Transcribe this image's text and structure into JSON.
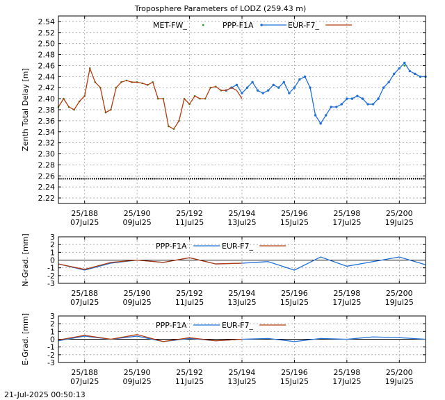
{
  "footer_timestamp": "21-Jul-2025 00:50:13",
  "colors": {
    "met": "#1a9a1a",
    "ppp": "#1f6fd6",
    "eur": "#b33a0d",
    "grid": "#a0a0a0",
    "hline": "#000000"
  },
  "chart_data": [
    {
      "type": "scatter",
      "title": "Troposphere Parameters of LODZ (259.43 m)",
      "ylabel": "Zenth Total Delay [m]",
      "xlim": [
        0,
        7.0
      ],
      "ylim": [
        2.21,
        2.55
      ],
      "yticks": [
        "2.22",
        "2.24",
        "2.26",
        "2.28",
        "2.30",
        "2.32",
        "2.34",
        "2.36",
        "2.38",
        "2.40",
        "2.42",
        "2.44",
        "2.46",
        "2.48",
        "2.50",
        "2.52",
        "2.54"
      ],
      "xticks": [
        {
          "pos": 0.5,
          "doy": "25/188",
          "date": "07Jul25"
        },
        {
          "pos": 1.5,
          "doy": "25/190",
          "date": "09Jul25"
        },
        {
          "pos": 2.5,
          "doy": "25/192",
          "date": "11Jul25"
        },
        {
          "pos": 3.5,
          "doy": "25/194",
          "date": "13Jul25"
        },
        {
          "pos": 4.5,
          "doy": "25/196",
          "date": "15Jul25"
        },
        {
          "pos": 5.5,
          "doy": "25/198",
          "date": "17Jul25"
        },
        {
          "pos": 6.5,
          "doy": "25/200",
          "date": "19Jul25"
        }
      ],
      "hline": 2.255,
      "grid": true,
      "legend_position": "top-center",
      "series": [
        {
          "name": "MET-FW_",
          "style": "dots",
          "color_key": "met",
          "x": [
            0.0,
            0.1,
            0.2,
            0.3,
            0.4,
            0.5,
            0.6,
            0.7,
            0.8,
            0.9,
            1.0,
            1.1,
            1.2,
            1.3,
            1.4,
            1.5,
            1.6,
            1.7,
            1.8,
            1.9,
            2.0,
            2.1,
            2.2,
            2.3,
            2.4,
            2.5,
            2.6,
            2.7,
            2.8,
            2.9,
            3.0,
            3.1,
            3.2,
            3.3,
            3.4,
            3.5,
            3.6,
            3.7,
            3.8,
            3.9,
            4.0,
            4.1,
            4.2,
            4.3,
            4.4,
            4.5,
            4.6,
            4.7,
            4.8,
            4.9,
            5.0,
            5.1,
            5.2,
            5.3,
            5.4,
            5.5,
            5.6,
            5.7,
            5.8,
            5.9,
            6.0,
            6.1,
            6.2,
            6.3,
            6.4,
            6.5,
            6.6,
            6.7,
            6.8,
            6.9,
            7.0
          ],
          "y": [
            2.385,
            2.4,
            2.385,
            2.38,
            2.395,
            2.405,
            2.455,
            2.43,
            2.42,
            2.375,
            2.38,
            2.42,
            2.43,
            2.433,
            2.43,
            2.43,
            2.428,
            2.425,
            2.43,
            2.4,
            2.4,
            2.35,
            2.345,
            2.36,
            2.4,
            2.39,
            2.405,
            2.4,
            2.4,
            2.42,
            2.422,
            2.415,
            2.415,
            2.42,
            2.425,
            2.41,
            2.42,
            2.43,
            2.415,
            2.41,
            2.415,
            2.425,
            2.42,
            2.43,
            2.41,
            2.42,
            2.435,
            2.44,
            2.42,
            2.37,
            2.355,
            2.37,
            2.385,
            2.385,
            2.39,
            2.4,
            2.4,
            2.405,
            2.4,
            2.39,
            2.39,
            2.4,
            2.42,
            2.43,
            2.445,
            2.455,
            2.46,
            2.45,
            2.445,
            2.44,
            2.44
          ]
        },
        {
          "name": "PPP-F1A",
          "style": "points-line",
          "color_key": "ppp",
          "x": [
            3.2,
            3.3,
            3.4,
            3.5,
            3.6,
            3.7,
            3.8,
            3.9,
            4.0,
            4.1,
            4.2,
            4.3,
            4.4,
            4.5,
            4.6,
            4.7,
            4.8,
            4.9,
            5.0,
            5.1,
            5.2,
            5.3,
            5.4,
            5.5,
            5.6,
            5.7,
            5.8,
            5.9,
            6.0,
            6.1,
            6.2,
            6.3,
            6.4,
            6.5,
            6.6,
            6.7,
            6.8,
            6.9,
            7.0
          ],
          "y": [
            2.415,
            2.42,
            2.425,
            2.41,
            2.42,
            2.43,
            2.415,
            2.41,
            2.415,
            2.425,
            2.42,
            2.43,
            2.41,
            2.42,
            2.435,
            2.44,
            2.42,
            2.37,
            2.355,
            2.37,
            2.385,
            2.385,
            2.39,
            2.4,
            2.4,
            2.405,
            2.4,
            2.39,
            2.39,
            2.4,
            2.42,
            2.43,
            2.445,
            2.455,
            2.465,
            2.45,
            2.445,
            2.44,
            2.44
          ]
        },
        {
          "name": "EUR-F7_",
          "style": "line",
          "color_key": "eur",
          "x": [
            0.0,
            0.1,
            0.2,
            0.3,
            0.4,
            0.5,
            0.6,
            0.7,
            0.8,
            0.9,
            1.0,
            1.1,
            1.2,
            1.3,
            1.4,
            1.5,
            1.6,
            1.7,
            1.8,
            1.9,
            2.0,
            2.1,
            2.2,
            2.3,
            2.4,
            2.5,
            2.6,
            2.7,
            2.8,
            2.9,
            3.0,
            3.1,
            3.2,
            3.3,
            3.4,
            3.5
          ],
          "y": [
            2.385,
            2.4,
            2.385,
            2.38,
            2.395,
            2.405,
            2.455,
            2.43,
            2.42,
            2.375,
            2.38,
            2.42,
            2.43,
            2.433,
            2.43,
            2.43,
            2.428,
            2.425,
            2.43,
            2.4,
            2.4,
            2.35,
            2.345,
            2.36,
            2.4,
            2.39,
            2.405,
            2.4,
            2.4,
            2.42,
            2.422,
            2.415,
            2.415,
            2.42,
            2.415,
            2.4
          ]
        }
      ]
    },
    {
      "type": "line",
      "ylabel": "N-Grad. [mm]",
      "xlim": [
        0,
        7.0
      ],
      "ylim": [
        -3,
        3
      ],
      "yticks": [
        "-3",
        "-2",
        "-1",
        "0",
        "1",
        "2",
        "3"
      ],
      "hline": 0,
      "grid": true,
      "legend_position": "top-center",
      "series": [
        {
          "name": "PPP-F1A",
          "color_key": "ppp",
          "x": [
            0.0,
            0.5,
            1.0,
            1.5,
            2.0,
            2.5,
            3.0,
            3.5,
            4.0,
            4.5,
            5.0,
            5.5,
            6.0,
            6.5,
            7.0
          ],
          "y": [
            -0.5,
            -1.3,
            -0.4,
            0.0,
            -0.3,
            0.3,
            -0.5,
            -0.4,
            -0.2,
            -1.3,
            0.4,
            -0.8,
            -0.2,
            0.4,
            -0.6
          ]
        },
        {
          "name": "EUR-F7_",
          "color_key": "eur",
          "x": [
            0.0,
            0.5,
            1.0,
            1.5,
            2.0,
            2.5,
            3.0,
            3.5
          ],
          "y": [
            -0.5,
            -1.2,
            -0.3,
            0.0,
            -0.3,
            0.3,
            -0.5,
            -0.4
          ]
        }
      ]
    },
    {
      "type": "line",
      "ylabel": "E-Grad. [mm]",
      "xlim": [
        0,
        7.0
      ],
      "ylim": [
        -3,
        3
      ],
      "yticks": [
        "-3",
        "-2",
        "-1",
        "0",
        "1",
        "2",
        "3"
      ],
      "hline": 0,
      "grid": true,
      "legend_position": "top-center",
      "series": [
        {
          "name": "PPP-F1A",
          "color_key": "ppp",
          "x": [
            0.0,
            0.5,
            1.0,
            1.5,
            2.0,
            2.5,
            3.0,
            3.5,
            4.0,
            4.5,
            5.0,
            5.5,
            6.0,
            6.5,
            7.0
          ],
          "y": [
            -0.2,
            0.4,
            0.0,
            0.4,
            -0.3,
            0.1,
            -0.2,
            0.0,
            0.1,
            -0.3,
            0.1,
            0.0,
            0.3,
            0.2,
            0.0
          ]
        },
        {
          "name": "EUR-F7_",
          "color_key": "eur",
          "x": [
            0.0,
            0.5,
            1.0,
            1.5,
            2.0,
            2.5,
            3.0,
            3.5
          ],
          "y": [
            -0.1,
            0.5,
            0.0,
            0.6,
            -0.3,
            0.2,
            -0.2,
            0.0
          ]
        }
      ]
    }
  ]
}
